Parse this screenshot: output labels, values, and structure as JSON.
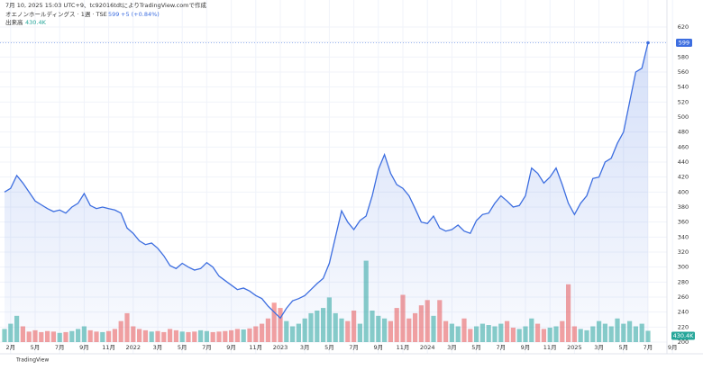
{
  "chart_data": {
    "type": "line",
    "caption": "7月 10, 2025 15:03 UTC+9、tc92016tdtによりTradingView.comで作成",
    "change_label": "+5 (+0.84%)",
    "brand": "TradingView",
    "categories": [
      null,
      "2月",
      null,
      null,
      null,
      "5月",
      null,
      null,
      null,
      "7月",
      null,
      null,
      null,
      "9月",
      null,
      null,
      null,
      "11月",
      null,
      null,
      null,
      "2022",
      null,
      null,
      null,
      "3月",
      null,
      null,
      null,
      "5月",
      null,
      null,
      null,
      "7月",
      null,
      null,
      null,
      "9月",
      null,
      null,
      null,
      "11月",
      null,
      null,
      null,
      "2023",
      null,
      null,
      null,
      "3月",
      null,
      null,
      null,
      "5月",
      null,
      null,
      null,
      "7月",
      null,
      null,
      null,
      "9月",
      null,
      null,
      null,
      "11月",
      null,
      null,
      null,
      "2024",
      null,
      null,
      null,
      "3月",
      null,
      null,
      null,
      "5月",
      null,
      null,
      null,
      "7月",
      null,
      null,
      null,
      "9月",
      null,
      null,
      null,
      "11月",
      null,
      null,
      null,
      "2025",
      null,
      null,
      null,
      "3月",
      null,
      null,
      null,
      "5月",
      null,
      null,
      null,
      "7月",
      null,
      null,
      null,
      "9月"
    ],
    "series": [
      {
        "name": "オエノンホールディングス · 1週 · TSE",
        "color": "#3d6ee0",
        "values": [
          400,
          405,
          422,
          412,
          400,
          388,
          383,
          378,
          374,
          376,
          372,
          380,
          385,
          398,
          382,
          378,
          380,
          378,
          376,
          372,
          352,
          345,
          335,
          330,
          332,
          325,
          315,
          302,
          298,
          305,
          300,
          296,
          298,
          306,
          300,
          288,
          282,
          276,
          270,
          272,
          268,
          262,
          258,
          248,
          240,
          232,
          245,
          255,
          258,
          262,
          270,
          278,
          285,
          305,
          340,
          375,
          360,
          350,
          362,
          368,
          395,
          430,
          450,
          425,
          410,
          405,
          395,
          378,
          360,
          358,
          368,
          352,
          348,
          350,
          356,
          348,
          345,
          362,
          370,
          372,
          385,
          395,
          388,
          380,
          382,
          395,
          432,
          425,
          412,
          420,
          432,
          410,
          385,
          370,
          385,
          395,
          418,
          420,
          440,
          445,
          465,
          480,
          520,
          560,
          565,
          599,
          null,
          null,
          null,
          null
        ]
      },
      {
        "name": "出来高",
        "axis": "y2",
        "up_color": "#26a69a",
        "down_color": "#ef5350",
        "last_label": "430.4K",
        "values": [
          500000,
          700000,
          1000000,
          600000,
          400000,
          450000,
          380000,
          420000,
          400000,
          350000,
          380000,
          420000,
          500000,
          600000,
          450000,
          400000,
          380000,
          420000,
          500000,
          800000,
          1100000,
          600000,
          500000,
          450000,
          400000,
          420000,
          380000,
          500000,
          450000,
          400000,
          380000,
          400000,
          450000,
          420000,
          380000,
          400000,
          420000,
          450000,
          500000,
          480000,
          520000,
          600000,
          700000,
          900000,
          1500000,
          1300000,
          800000,
          600000,
          700000,
          900000,
          1100000,
          1200000,
          1300000,
          1700000,
          1100000,
          900000,
          800000,
          1200000,
          700000,
          3100000,
          1200000,
          1000000,
          900000,
          800000,
          1300000,
          1800000,
          900000,
          1100000,
          1400000,
          1600000,
          1000000,
          1600000,
          800000,
          700000,
          600000,
          900000,
          500000,
          600000,
          700000,
          650000,
          600000,
          700000,
          800000,
          550000,
          500000,
          600000,
          900000,
          700000,
          500000,
          550000,
          600000,
          800000,
          2200000,
          600000,
          500000,
          450000,
          600000,
          800000,
          700000,
          600000,
          900000,
          700000,
          800000,
          600000,
          700000,
          430400,
          null,
          null,
          null,
          null
        ]
      }
    ],
    "ylim": [
      200,
      620
    ],
    "yticks": [
      200,
      220,
      240,
      260,
      280,
      300,
      320,
      340,
      360,
      380,
      400,
      420,
      440,
      460,
      480,
      500,
      520,
      540,
      560,
      580,
      600,
      620
    ],
    "y2lim": [
      0,
      12000000
    ],
    "grid": true
  }
}
